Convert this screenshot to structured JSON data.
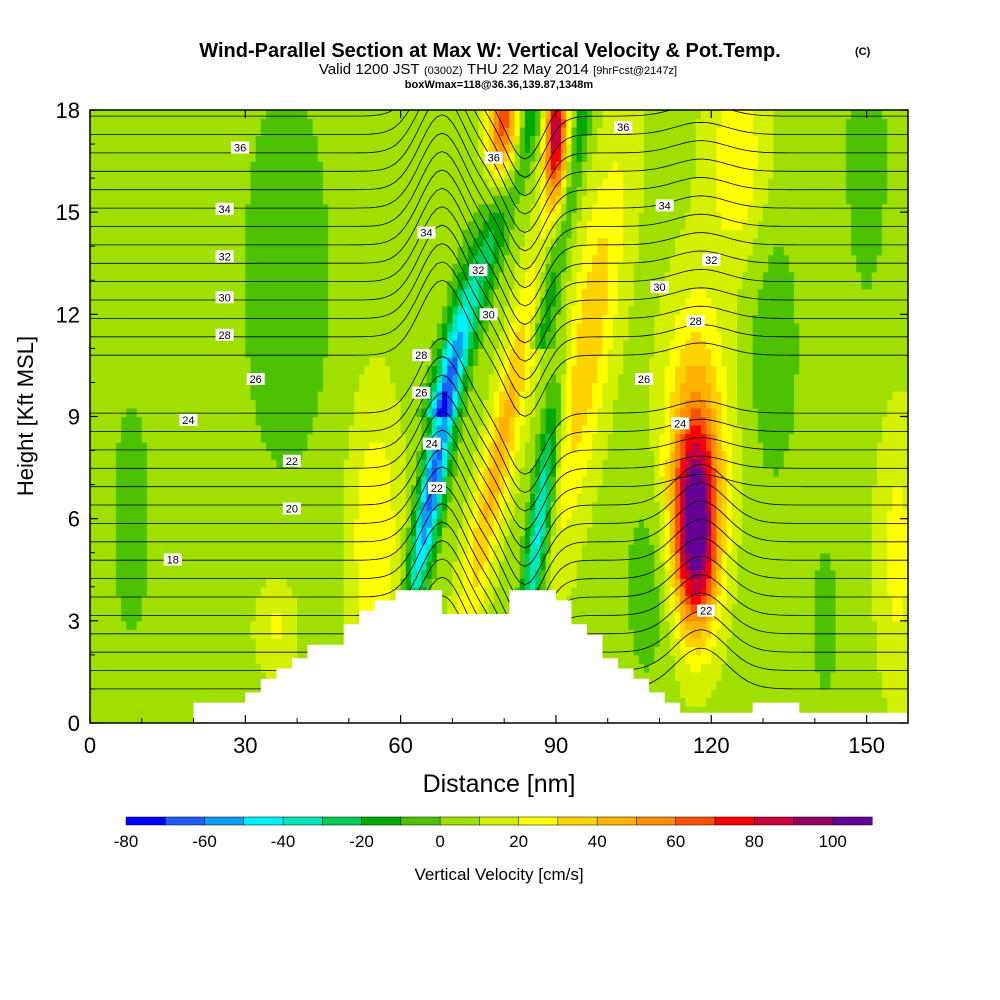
{
  "chart_data": {
    "type": "heatmap",
    "title": "Wind-Parallel Section at Max W: Vertical Velocity & Pot.Temp.",
    "title_mark": "(C)",
    "subtitle": {
      "valid_prefix": "Valid 1200 JST",
      "utc_time": "(0300Z)",
      "date": "THU 22 May 2014",
      "forecast": "[9hrFcst@2147z]"
    },
    "box_line": "boxWmax=118@36.36,139.87,1348m",
    "xlabel": "Distance [nm]",
    "ylabel": "Height [Kft MSL]",
    "xlim": [
      0,
      158
    ],
    "ylim": [
      0,
      18
    ],
    "x_ticks": [
      0,
      30,
      60,
      90,
      120,
      150
    ],
    "y_ticks": [
      0,
      3,
      6,
      9,
      12,
      15,
      18
    ],
    "colorbar": {
      "label": "Vertical Velocity [cm/s]",
      "tick_values": [
        -80,
        -60,
        -40,
        -20,
        0,
        20,
        40,
        60,
        80,
        100
      ],
      "bounds": [
        -80,
        -70,
        -60,
        -50,
        -40,
        -30,
        -20,
        -10,
        0,
        10,
        20,
        30,
        40,
        50,
        60,
        70,
        80,
        90,
        100,
        110
      ],
      "colors": [
        "#0000ff",
        "#1e5ef5",
        "#0aa0f5",
        "#00f0ff",
        "#00e6b4",
        "#00cc5a",
        "#00a800",
        "#4cc200",
        "#a0e000",
        "#d2f000",
        "#ffff00",
        "#fcd200",
        "#fcb400",
        "#fc8c00",
        "#fc5000",
        "#fc0000",
        "#c8003c",
        "#960064",
        "#640096"
      ]
    },
    "contours": {
      "name": "Potential temperature (°C)",
      "levels": [
        18,
        20,
        22,
        24,
        26,
        28,
        30,
        32,
        34,
        36
      ]
    },
    "contour_labels": [
      {
        "text": "36",
        "x": 29,
        "y": 16.9
      },
      {
        "text": "34",
        "x": 26,
        "y": 15.1
      },
      {
        "text": "32",
        "x": 26,
        "y": 13.7
      },
      {
        "text": "30",
        "x": 26,
        "y": 12.5
      },
      {
        "text": "28",
        "x": 26,
        "y": 11.4
      },
      {
        "text": "26",
        "x": 32,
        "y": 10.1
      },
      {
        "text": "24",
        "x": 19,
        "y": 8.9
      },
      {
        "text": "22",
        "x": 39,
        "y": 7.7
      },
      {
        "text": "20",
        "x": 39,
        "y": 6.3
      },
      {
        "text": "18",
        "x": 16,
        "y": 4.8
      },
      {
        "text": "36",
        "x": 78,
        "y": 16.6
      },
      {
        "text": "34",
        "x": 65,
        "y": 14.4
      },
      {
        "text": "32",
        "x": 75,
        "y": 13.3
      },
      {
        "text": "30",
        "x": 77,
        "y": 12.0
      },
      {
        "text": "28",
        "x": 64,
        "y": 10.8
      },
      {
        "text": "26",
        "x": 64,
        "y": 9.7
      },
      {
        "text": "24",
        "x": 66,
        "y": 8.2
      },
      {
        "text": "22",
        "x": 67,
        "y": 6.9
      },
      {
        "text": "36",
        "x": 103,
        "y": 17.5
      },
      {
        "text": "34",
        "x": 111,
        "y": 15.2
      },
      {
        "text": "32",
        "x": 120,
        "y": 13.6
      },
      {
        "text": "30",
        "x": 110,
        "y": 12.8
      },
      {
        "text": "28",
        "x": 117,
        "y": 11.8
      },
      {
        "text": "26",
        "x": 107,
        "y": 10.1
      },
      {
        "text": "24",
        "x": 114,
        "y": 8.8
      },
      {
        "text": "22",
        "x": 119,
        "y": 3.3
      }
    ],
    "terrain_height_kft": [
      [
        0,
        0
      ],
      [
        20,
        0
      ],
      [
        20,
        0.6
      ],
      [
        30,
        0.6
      ],
      [
        30,
        0.9
      ],
      [
        33,
        0.9
      ],
      [
        33,
        1.3
      ],
      [
        36,
        1.3
      ],
      [
        36,
        1.6
      ],
      [
        39,
        1.6
      ],
      [
        39,
        1.9
      ],
      [
        42,
        1.9
      ],
      [
        42,
        2.3
      ],
      [
        49,
        2.3
      ],
      [
        49,
        2.9
      ],
      [
        52,
        2.9
      ],
      [
        52,
        3.3
      ],
      [
        55,
        3.3
      ],
      [
        55,
        3.6
      ],
      [
        59,
        3.6
      ],
      [
        59,
        3.9
      ],
      [
        68,
        3.9
      ],
      [
        68,
        3.2
      ],
      [
        81,
        3.2
      ],
      [
        81,
        3.9
      ],
      [
        90,
        3.9
      ],
      [
        90,
        3.6
      ],
      [
        93,
        3.6
      ],
      [
        93,
        2.9
      ],
      [
        96,
        2.9
      ],
      [
        96,
        2.6
      ],
      [
        99,
        2.6
      ],
      [
        99,
        1.9
      ],
      [
        102,
        1.9
      ],
      [
        102,
        1.6
      ],
      [
        105,
        1.6
      ],
      [
        105,
        1.3
      ],
      [
        108,
        1.3
      ],
      [
        108,
        0.9
      ],
      [
        111,
        0.9
      ],
      [
        111,
        0.6
      ],
      [
        114,
        0.6
      ],
      [
        114,
        0.3
      ],
      [
        128,
        0.3
      ],
      [
        128,
        0.6
      ],
      [
        137,
        0.6
      ],
      [
        137,
        0.3
      ],
      [
        158,
        0.3
      ],
      [
        158,
        0
      ]
    ]
  }
}
